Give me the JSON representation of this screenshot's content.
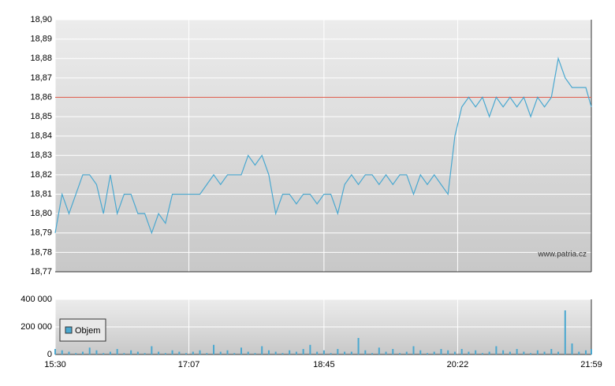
{
  "chart_data": [
    {
      "type": "line",
      "color": "#4aa8d0",
      "grid": true,
      "x": [
        "15:30",
        "15:35",
        "15:40",
        "15:45",
        "15:50",
        "15:55",
        "16:00",
        "16:05",
        "16:10",
        "16:15",
        "16:20",
        "16:25",
        "16:30",
        "16:35",
        "16:40",
        "16:45",
        "16:50",
        "16:55",
        "17:00",
        "17:05",
        "17:10",
        "17:15",
        "17:20",
        "17:25",
        "17:30",
        "17:35",
        "17:40",
        "17:45",
        "17:50",
        "17:55",
        "18:00",
        "18:05",
        "18:10",
        "18:15",
        "18:20",
        "18:25",
        "18:30",
        "18:35",
        "18:40",
        "18:45",
        "18:50",
        "18:55",
        "19:00",
        "19:05",
        "19:10",
        "19:15",
        "19:20",
        "19:25",
        "19:30",
        "19:35",
        "19:40",
        "19:45",
        "19:50",
        "19:55",
        "20:00",
        "20:05",
        "20:10",
        "20:15",
        "20:20",
        "20:25",
        "20:30",
        "20:35",
        "20:40",
        "20:45",
        "20:50",
        "20:55",
        "21:00",
        "21:05",
        "21:10",
        "21:15",
        "21:20",
        "21:25",
        "21:30",
        "21:35",
        "21:40",
        "21:45",
        "21:50",
        "21:55",
        "21:59"
      ],
      "values": [
        18.79,
        18.81,
        18.8,
        18.81,
        18.82,
        18.82,
        18.815,
        18.8,
        18.82,
        18.8,
        18.81,
        18.81,
        18.8,
        18.8,
        18.79,
        18.8,
        18.795,
        18.81,
        18.81,
        18.81,
        18.81,
        18.81,
        18.815,
        18.82,
        18.815,
        18.82,
        18.82,
        18.82,
        18.83,
        18.825,
        18.83,
        18.82,
        18.8,
        18.81,
        18.81,
        18.805,
        18.81,
        18.81,
        18.805,
        18.81,
        18.81,
        18.8,
        18.815,
        18.82,
        18.815,
        18.82,
        18.82,
        18.815,
        18.82,
        18.815,
        18.82,
        18.82,
        18.81,
        18.82,
        18.815,
        18.82,
        18.815,
        18.81,
        18.84,
        18.855,
        18.86,
        18.855,
        18.86,
        18.85,
        18.86,
        18.855,
        18.86,
        18.855,
        18.86,
        18.85,
        18.86,
        18.855,
        18.86,
        18.88,
        18.87,
        18.865,
        18.865,
        18.865,
        18.855
      ],
      "xlim": [
        "15:30",
        "21:59"
      ],
      "ylim": [
        18.77,
        18.9
      ],
      "yticks": [
        {
          "value": 18.77,
          "label": "18,77"
        },
        {
          "value": 18.78,
          "label": "18,78"
        },
        {
          "value": 18.79,
          "label": "18,79"
        },
        {
          "value": 18.8,
          "label": "18,80"
        },
        {
          "value": 18.81,
          "label": "18,81"
        },
        {
          "value": 18.82,
          "label": "18,82"
        },
        {
          "value": 18.83,
          "label": "18,83"
        },
        {
          "value": 18.84,
          "label": "18,84"
        },
        {
          "value": 18.85,
          "label": "18,85"
        },
        {
          "value": 18.86,
          "label": "18,86"
        },
        {
          "value": 18.87,
          "label": "18,87"
        },
        {
          "value": 18.88,
          "label": "18,88"
        },
        {
          "value": 18.89,
          "label": "18,89"
        },
        {
          "value": 18.9,
          "label": "18,90"
        }
      ],
      "reference_line": {
        "value": 18.86,
        "color": "#e06050"
      },
      "annotation": "www.patria.cz"
    },
    {
      "type": "bar",
      "grid": true,
      "legend": "bottom-left",
      "x": [
        "15:30",
        "15:35",
        "15:40",
        "15:45",
        "15:50",
        "15:55",
        "16:00",
        "16:05",
        "16:10",
        "16:15",
        "16:20",
        "16:25",
        "16:30",
        "16:35",
        "16:40",
        "16:45",
        "16:50",
        "16:55",
        "17:00",
        "17:05",
        "17:10",
        "17:15",
        "17:20",
        "17:25",
        "17:30",
        "17:35",
        "17:40",
        "17:45",
        "17:50",
        "17:55",
        "18:00",
        "18:05",
        "18:10",
        "18:15",
        "18:20",
        "18:25",
        "18:30",
        "18:35",
        "18:40",
        "18:45",
        "18:50",
        "18:55",
        "19:00",
        "19:05",
        "19:10",
        "19:15",
        "19:20",
        "19:25",
        "19:30",
        "19:35",
        "19:40",
        "19:45",
        "19:50",
        "19:55",
        "20:00",
        "20:05",
        "20:10",
        "20:15",
        "20:20",
        "20:25",
        "20:30",
        "20:35",
        "20:40",
        "20:45",
        "20:50",
        "20:55",
        "21:00",
        "21:05",
        "21:10",
        "21:15",
        "21:20",
        "21:25",
        "21:30",
        "21:35",
        "21:40",
        "21:45",
        "21:50",
        "21:55",
        "21:59"
      ],
      "series": [
        {
          "name": "Objem",
          "color": "#4aa8d0",
          "values": [
            40000,
            30000,
            20000,
            10000,
            20000,
            50000,
            30000,
            10000,
            20000,
            40000,
            10000,
            30000,
            20000,
            10000,
            60000,
            20000,
            10000,
            30000,
            20000,
            10000,
            20000,
            30000,
            10000,
            70000,
            20000,
            30000,
            10000,
            50000,
            20000,
            10000,
            60000,
            30000,
            20000,
            10000,
            30000,
            20000,
            40000,
            70000,
            20000,
            30000,
            10000,
            40000,
            20000,
            20000,
            120000,
            30000,
            10000,
            50000,
            20000,
            40000,
            10000,
            20000,
            60000,
            30000,
            10000,
            20000,
            40000,
            30000,
            20000,
            40000,
            20000,
            30000,
            10000,
            20000,
            60000,
            30000,
            20000,
            40000,
            20000,
            10000,
            30000,
            20000,
            40000,
            20000,
            320000,
            80000,
            20000,
            30000,
            40000
          ]
        }
      ],
      "xlim": [
        "15:30",
        "21:59"
      ],
      "ylim": [
        0,
        400000
      ],
      "xticks": [
        "15:30",
        "17:07",
        "18:45",
        "20:22",
        "21:59"
      ],
      "yticks": [
        {
          "value": 0,
          "label": "0"
        },
        {
          "value": 200000,
          "label": "200 000"
        },
        {
          "value": 400000,
          "label": "400 000"
        }
      ]
    }
  ]
}
